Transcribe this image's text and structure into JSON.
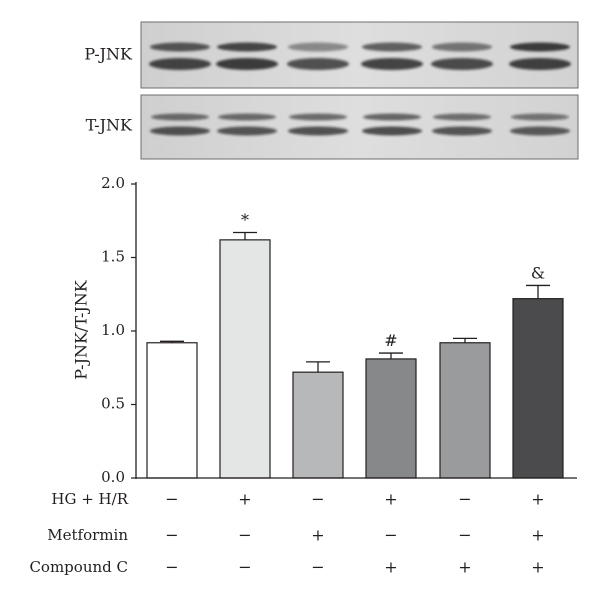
{
  "blot": {
    "labels": [
      "P-JNK",
      "T-JNK"
    ],
    "lanes": 6
  },
  "chart_data": {
    "type": "bar",
    "ylabel": "P-JNK/T-JNK",
    "ylim": [
      0,
      2.0
    ],
    "yticks": [
      "0.0",
      "0.5",
      "1.0",
      "1.5",
      "2.0"
    ],
    "bars": [
      {
        "value": 0.92,
        "error": 0.01,
        "color": "#ffffff",
        "annotation": ""
      },
      {
        "value": 1.62,
        "error": 0.05,
        "color": "#e4e6e5",
        "annotation": "*"
      },
      {
        "value": 0.72,
        "error": 0.07,
        "color": "#b7b8ba",
        "annotation": ""
      },
      {
        "value": 0.81,
        "error": 0.04,
        "color": "#87888a",
        "annotation": "#"
      },
      {
        "value": 0.92,
        "error": 0.03,
        "color": "#9a9b9d",
        "annotation": ""
      },
      {
        "value": 1.22,
        "error": 0.09,
        "color": "#4b4b4d",
        "annotation": "&"
      }
    ],
    "conditions": [
      {
        "label": "HG + H/R",
        "signs": [
          "−",
          "+",
          "−",
          "+",
          "−",
          "+"
        ]
      },
      {
        "label": "Metformin",
        "signs": [
          "−",
          "−",
          "+",
          "−",
          "−",
          "+"
        ]
      },
      {
        "label": "Compound C",
        "signs": [
          "−",
          "−",
          "−",
          "+",
          "+",
          "+"
        ]
      }
    ]
  }
}
